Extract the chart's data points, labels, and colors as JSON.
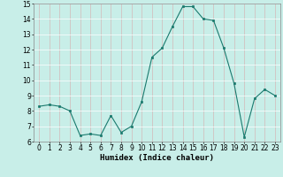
{
  "x": [
    0,
    1,
    2,
    3,
    4,
    5,
    6,
    7,
    8,
    9,
    10,
    11,
    12,
    13,
    14,
    15,
    16,
    17,
    18,
    19,
    20,
    21,
    22,
    23
  ],
  "y": [
    8.3,
    8.4,
    8.3,
    8.0,
    6.4,
    6.5,
    6.4,
    7.7,
    6.6,
    7.0,
    8.6,
    11.5,
    12.1,
    13.5,
    14.8,
    14.8,
    14.0,
    13.9,
    12.1,
    9.8,
    6.3,
    8.8,
    9.4,
    9.0
  ],
  "line_color": "#1a7a6e",
  "marker_color": "#1a7a6e",
  "bg_color": "#c8eee8",
  "grid_color": "#b0d8d0",
  "xlabel": "Humidex (Indice chaleur)",
  "ylim": [
    6,
    15
  ],
  "xlim_min": -0.5,
  "xlim_max": 23.5,
  "yticks": [
    6,
    7,
    8,
    9,
    10,
    11,
    12,
    13,
    14,
    15
  ],
  "xticks": [
    0,
    1,
    2,
    3,
    4,
    5,
    6,
    7,
    8,
    9,
    10,
    11,
    12,
    13,
    14,
    15,
    16,
    17,
    18,
    19,
    20,
    21,
    22,
    23
  ],
  "xlabel_fontsize": 6.5,
  "tick_fontsize": 5.5,
  "line_width": 0.8,
  "marker_size": 2.0
}
